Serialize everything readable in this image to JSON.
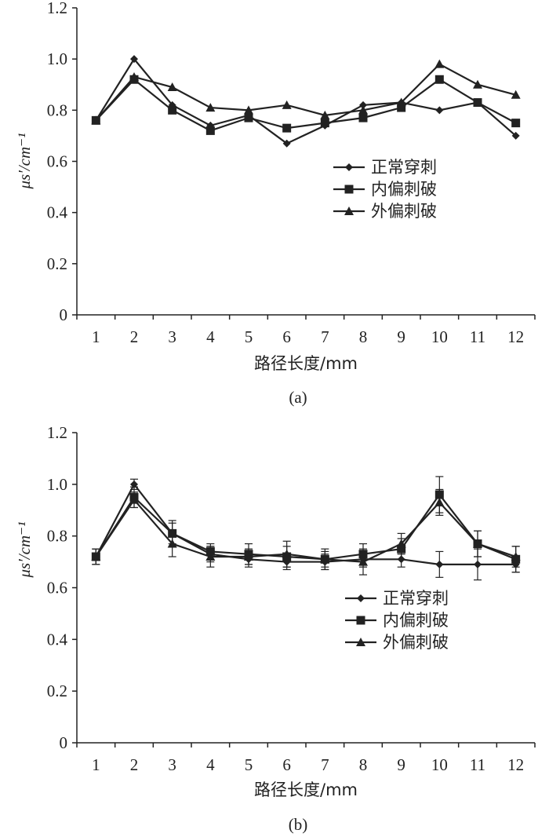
{
  "chart_data": [
    {
      "type": "line",
      "caption": "(a)",
      "xlabel": "路径长度/mm",
      "ylabel": "μs′/cm⁻¹",
      "x": [
        1,
        2,
        3,
        4,
        5,
        6,
        7,
        8,
        9,
        10,
        11,
        12
      ],
      "ylim": [
        0,
        1.2
      ],
      "yticks": [
        "0",
        "0.2",
        "0.4",
        "0.6",
        "0.8",
        "1.0",
        "1.2"
      ],
      "legend_position": "center-right",
      "series": [
        {
          "name": "正常穿刺",
          "marker": "diamond",
          "values": [
            0.76,
            1.0,
            0.82,
            0.74,
            0.78,
            0.67,
            0.74,
            0.82,
            0.83,
            0.8,
            0.83,
            0.7
          ]
        },
        {
          "name": "内偏刺破",
          "marker": "square",
          "values": [
            0.76,
            0.92,
            0.8,
            0.72,
            0.77,
            0.73,
            0.75,
            0.77,
            0.81,
            0.92,
            0.83,
            0.75
          ]
        },
        {
          "name": "外偏刺破",
          "marker": "triangle",
          "values": [
            0.76,
            0.93,
            0.89,
            0.81,
            0.8,
            0.82,
            0.78,
            0.8,
            0.83,
            0.98,
            0.9,
            0.86
          ]
        }
      ]
    },
    {
      "type": "line",
      "caption": "(b)",
      "xlabel": "路径长度/mm",
      "ylabel": "μs′/cm⁻¹",
      "x": [
        1,
        2,
        3,
        4,
        5,
        6,
        7,
        8,
        9,
        10,
        11,
        12
      ],
      "ylim": [
        0,
        1.2
      ],
      "yticks": [
        "0",
        "0.2",
        "0.4",
        "0.6",
        "0.8",
        "1.0",
        "1.2"
      ],
      "legend_position": "center-right",
      "error_bars": true,
      "series": [
        {
          "name": "正常穿刺",
          "marker": "diamond",
          "values": [
            0.72,
            1.0,
            0.81,
            0.73,
            0.71,
            0.7,
            0.7,
            0.71,
            0.71,
            0.69,
            0.69,
            0.69
          ],
          "errors": [
            0.03,
            0.02,
            0.04,
            0.03,
            0.03,
            0.03,
            0.03,
            0.03,
            0.03,
            0.05,
            0.06,
            0.03
          ]
        },
        {
          "name": "内偏刺破",
          "marker": "square",
          "values": [
            0.72,
            0.95,
            0.81,
            0.74,
            0.73,
            0.72,
            0.71,
            0.73,
            0.75,
            0.96,
            0.77,
            0.71
          ],
          "errors": [
            0.03,
            0.04,
            0.05,
            0.03,
            0.04,
            0.04,
            0.04,
            0.04,
            0.04,
            0.07,
            0.05,
            0.05
          ]
        },
        {
          "name": "外偏刺破",
          "marker": "triangle",
          "values": [
            0.72,
            0.94,
            0.77,
            0.72,
            0.72,
            0.73,
            0.71,
            0.7,
            0.77,
            0.93,
            0.77,
            0.72
          ],
          "errors": [
            0.03,
            0.03,
            0.05,
            0.04,
            0.03,
            0.05,
            0.03,
            0.05,
            0.04,
            0.05,
            0.05,
            0.04
          ]
        }
      ]
    }
  ]
}
